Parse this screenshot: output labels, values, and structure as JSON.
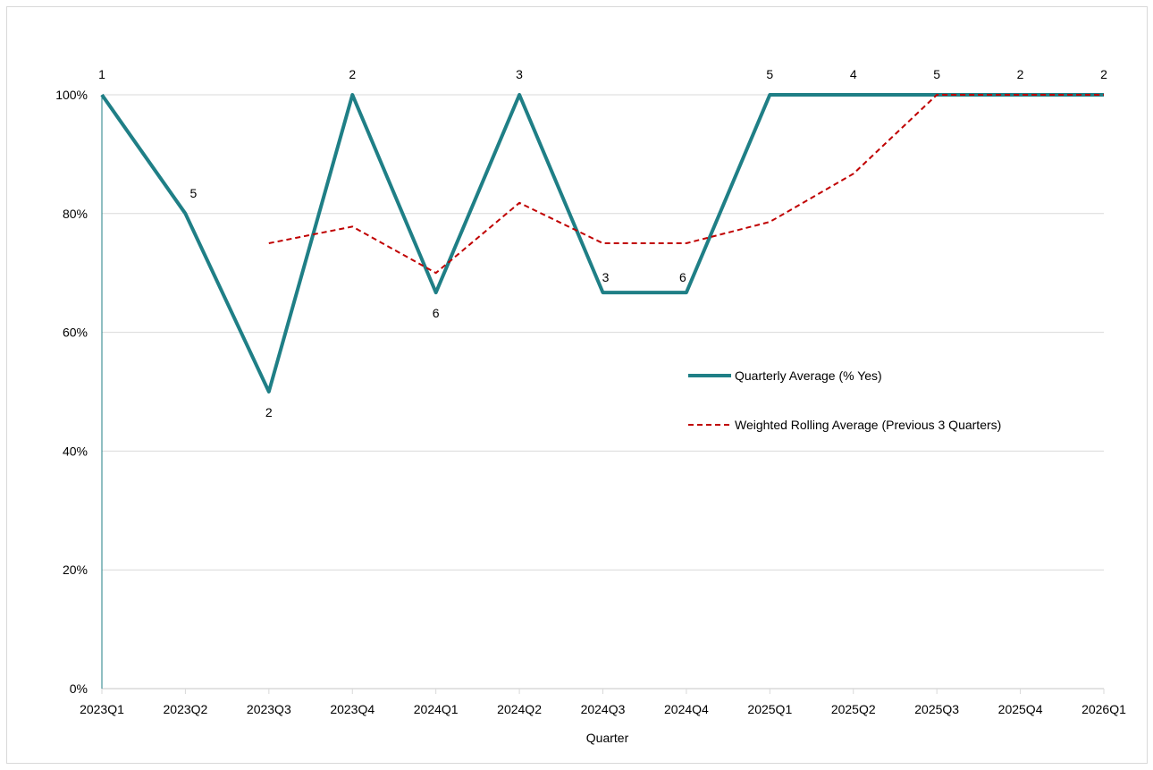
{
  "chart_data": {
    "type": "line",
    "title": "",
    "xlabel": "Quarter",
    "ylabel": "",
    "ylim": [
      0,
      1
    ],
    "y_ticks": [
      "0%",
      "20%",
      "40%",
      "60%",
      "80%",
      "100%"
    ],
    "y_tick_values": [
      0,
      0.2,
      0.4,
      0.6,
      0.8,
      1.0
    ],
    "grid": true,
    "legend_position": "center-right",
    "categories": [
      "2023Q1",
      "2023Q2",
      "2023Q3",
      "2023Q4",
      "2024Q1",
      "2024Q2",
      "2024Q3",
      "2024Q4",
      "2025Q1",
      "2025Q2",
      "2025Q3",
      "2025Q4",
      "2026Q1"
    ],
    "series": [
      {
        "name": "Quarterly Average (% Yes)",
        "style": "solid",
        "color": "#1f7f86",
        "values": [
          1.0,
          0.8,
          0.5,
          1.0,
          0.667,
          1.0,
          0.667,
          0.667,
          1.0,
          1.0,
          1.0,
          1.0,
          1.0
        ],
        "data_labels": [
          "1",
          "5",
          "2",
          "2",
          "6",
          "3",
          "3",
          "6",
          "5",
          "4",
          "5",
          "2",
          "2"
        ],
        "label_positions": [
          "above",
          "above-right",
          "below",
          "above",
          "below",
          "above",
          "above",
          "above",
          "above",
          "above",
          "above",
          "above",
          "above"
        ]
      },
      {
        "name": "Weighted Rolling Average (Previous 3 Quarters)",
        "style": "dashed",
        "color": "#c00000",
        "values": [
          null,
          null,
          0.75,
          0.778,
          0.7,
          0.818,
          0.75,
          0.75,
          0.786,
          0.867,
          1.0,
          1.0,
          1.0
        ]
      }
    ]
  },
  "colors": {
    "axis_line": "#1f7f86",
    "gridline": "#d9d9d9",
    "frame_border": "#d9d9d9"
  }
}
